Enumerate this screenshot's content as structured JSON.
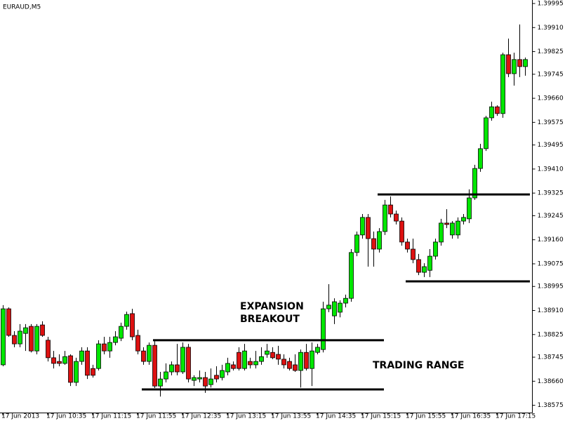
{
  "chart_data": {
    "type": "candlestick",
    "title": "EURAUD,M5",
    "annotations": [
      "EXPANSION",
      "BREAKOUT",
      "TRADING RANGE"
    ],
    "categories": [
      "17 Jun 2013",
      null,
      null,
      null,
      null,
      null,
      null,
      null,
      "17 Jun 10:35",
      null,
      null,
      null,
      null,
      null,
      null,
      null,
      "17 Jun 11:15",
      null,
      null,
      null,
      null,
      null,
      null,
      null,
      "17 Jun 11:55",
      null,
      null,
      null,
      null,
      null,
      null,
      null,
      "17 Jun 12:35",
      null,
      null,
      null,
      null,
      null,
      null,
      null,
      "17 Jun 13:15",
      null,
      null,
      null,
      null,
      null,
      null,
      null,
      "17 Jun 13:55",
      null,
      null,
      null,
      null,
      null,
      null,
      null,
      "17 Jun 14:35",
      null,
      null,
      null,
      null,
      null,
      null,
      null,
      "17 Jun 15:15",
      null,
      null,
      null,
      null,
      null,
      null,
      null,
      "17 Jun 15:55",
      null,
      null,
      null,
      null,
      null,
      null,
      null,
      "17 Jun 16:35",
      null,
      null,
      null,
      null,
      null,
      null,
      null,
      "17 Jun 17:15",
      null,
      null,
      null,
      null,
      null
    ],
    "open": [
      1.38718,
      1.38916,
      1.38822,
      1.38792,
      1.38829,
      1.38854,
      1.38767,
      1.38859,
      1.38805,
      1.38743,
      1.3873,
      1.38723,
      1.3875,
      1.38656,
      1.3873,
      1.38767,
      1.38705,
      1.38705,
      1.38792,
      1.38767,
      1.38797,
      1.38812,
      1.38854,
      1.38899,
      1.38822,
      1.38767,
      1.3873,
      1.38787,
      1.38643,
      1.38668,
      1.38693,
      1.38718,
      1.38693,
      1.3878,
      1.38663,
      1.38668,
      1.38673,
      1.38648,
      1.38681,
      1.38673,
      1.38693,
      1.38718,
      1.38762,
      1.38705,
      1.3873,
      1.38718,
      1.3873,
      1.38755,
      1.38762,
      1.38755,
      1.38738,
      1.3873,
      1.38718,
      1.38698,
      1.38762,
      1.38705,
      1.38762,
      1.38772,
      1.38916,
      1.38891,
      1.38904,
      1.38936,
      1.38953,
      1.39115,
      1.39177,
      1.39239,
      1.39164,
      1.39127,
      1.39189,
      1.39283,
      1.39251,
      1.39226,
      1.39152,
      1.39127,
      1.3909,
      1.39045,
      1.39052,
      1.39102,
      1.39152,
      1.39219,
      1.39177,
      1.39177,
      1.39226,
      1.39234,
      1.39308,
      1.39412,
      1.39482,
      1.39591,
      1.3963,
      1.39606,
      1.39814,
      1.39747,
      1.39797,
      1.39772
    ],
    "high": [
      1.38929,
      1.38921,
      1.38837,
      1.38862,
      1.38862,
      1.38862,
      1.38862,
      1.38872,
      1.38817,
      1.38767,
      1.38755,
      1.38767,
      1.38755,
      1.38743,
      1.3878,
      1.3878,
      1.38718,
      1.38805,
      1.38817,
      1.38817,
      1.38837,
      1.38867,
      1.38906,
      1.38916,
      1.38842,
      1.3878,
      1.38797,
      1.38802,
      1.38693,
      1.38723,
      1.3873,
      1.38792,
      1.38797,
      1.38792,
      1.38681,
      1.38698,
      1.38693,
      1.38705,
      1.38713,
      1.38718,
      1.38743,
      1.3873,
      1.3878,
      1.38792,
      1.38743,
      1.38767,
      1.3878,
      1.38792,
      1.3878,
      1.38785,
      1.38755,
      1.38743,
      1.38755,
      1.38772,
      1.38792,
      1.38797,
      1.38792,
      1.38941,
      1.39003,
      1.38953,
      1.38946,
      1.38966,
      1.39127,
      1.39189,
      1.39251,
      1.39251,
      1.39189,
      1.39201,
      1.39301,
      1.39313,
      1.39263,
      1.39239,
      1.39164,
      1.39164,
      1.3911,
      1.39077,
      1.39127,
      1.39164,
      1.39234,
      1.39268,
      1.39226,
      1.39239,
      1.39251,
      1.39338,
      1.39425,
      1.39499,
      1.39598,
      1.39648,
      1.39635,
      1.39821,
      1.39871,
      1.39821,
      1.39921,
      1.39804
    ],
    "low": [
      1.38713,
      1.38817,
      1.3878,
      1.3878,
      1.38767,
      1.38762,
      1.38755,
      1.38817,
      1.3873,
      1.38705,
      1.38713,
      1.38718,
      1.38643,
      1.38643,
      1.38718,
      1.38668,
      1.38673,
      1.38698,
      1.38755,
      1.38743,
      1.38787,
      1.38802,
      1.38842,
      1.38805,
      1.38755,
      1.38718,
      1.38718,
      1.38636,
      1.38606,
      1.38656,
      1.38681,
      1.38681,
      1.38686,
      1.38656,
      1.38643,
      1.38656,
      1.38619,
      1.38638,
      1.38656,
      1.38663,
      1.38681,
      1.38698,
      1.38698,
      1.38698,
      1.38705,
      1.38705,
      1.38718,
      1.38743,
      1.38738,
      1.38718,
      1.38705,
      1.38698,
      1.38693,
      1.38638,
      1.38698,
      1.38643,
      1.38755,
      1.38762,
      1.38904,
      1.38862,
      1.38886,
      1.38921,
      1.38941,
      1.39102,
      1.39164,
      1.39065,
      1.39065,
      1.39115,
      1.39177,
      1.39239,
      1.39214,
      1.39139,
      1.39115,
      1.39077,
      1.39035,
      1.39028,
      1.39028,
      1.3909,
      1.39139,
      1.39201,
      1.39164,
      1.39164,
      1.39214,
      1.39219,
      1.39301,
      1.394,
      1.39474,
      1.39581,
      1.39598,
      1.39591,
      1.39735,
      1.39705,
      1.39735,
      1.3974
    ],
    "close": [
      1.38916,
      1.38822,
      1.38792,
      1.38837,
      1.38849,
      1.38767,
      1.38854,
      1.38822,
      1.38743,
      1.38723,
      1.38723,
      1.38747,
      1.38656,
      1.3873,
      1.38767,
      1.38681,
      1.38681,
      1.38792,
      1.38767,
      1.38797,
      1.38817,
      1.38854,
      1.38896,
      1.38817,
      1.38767,
      1.3873,
      1.38787,
      1.38643,
      1.38668,
      1.38693,
      1.38718,
      1.38693,
      1.3878,
      1.38668,
      1.38673,
      1.38673,
      1.38643,
      1.38668,
      1.38668,
      1.38698,
      1.38723,
      1.38705,
      1.38705,
      1.38767,
      1.38718,
      1.3873,
      1.38747,
      1.38767,
      1.38743,
      1.38738,
      1.38718,
      1.38705,
      1.38698,
      1.38762,
      1.38705,
      1.38767,
      1.3878,
      1.38916,
      1.38929,
      1.38941,
      1.38936,
      1.38953,
      1.39115,
      1.39177,
      1.39239,
      1.39164,
      1.39127,
      1.39189,
      1.39283,
      1.39251,
      1.39226,
      1.39152,
      1.39127,
      1.3909,
      1.39045,
      1.39065,
      1.39102,
      1.39152,
      1.39219,
      1.39214,
      1.39219,
      1.39226,
      1.39239,
      1.39308,
      1.39412,
      1.39482,
      1.39591,
      1.3963,
      1.39606,
      1.39814,
      1.39747,
      1.39797,
      1.39772,
      1.39797
    ],
    "up_color": "#00e600",
    "down_color": "#dd1111",
    "levels": [
      {
        "value": 1.38805,
        "from": 27,
        "to": 67
      },
      {
        "value": 1.38631,
        "from": 25,
        "to": 67
      },
      {
        "value": 1.3932,
        "from": 67,
        "to": 93
      },
      {
        "value": 1.39013,
        "from": 72,
        "to": 93
      }
    ],
    "ylim": [
      1.38575,
      1.39995
    ],
    "yticks": [
      1.39995,
      {
        "value": 1.3991,
        "label": "1.39910"
      },
      1.39825,
      1.39745,
      {
        "value": 1.3966,
        "label": "1.39660"
      },
      1.39575,
      1.39495,
      {
        "value": 1.3941,
        "label": "1.39410"
      },
      1.39325,
      1.39245,
      {
        "value": 1.3916,
        "label": "1.39160"
      },
      1.39075,
      1.38995,
      {
        "value": 1.3891,
        "label": "1.38910"
      },
      1.38825,
      1.38745,
      {
        "value": 1.3866,
        "label": "1.38660"
      },
      1.38575
    ]
  }
}
